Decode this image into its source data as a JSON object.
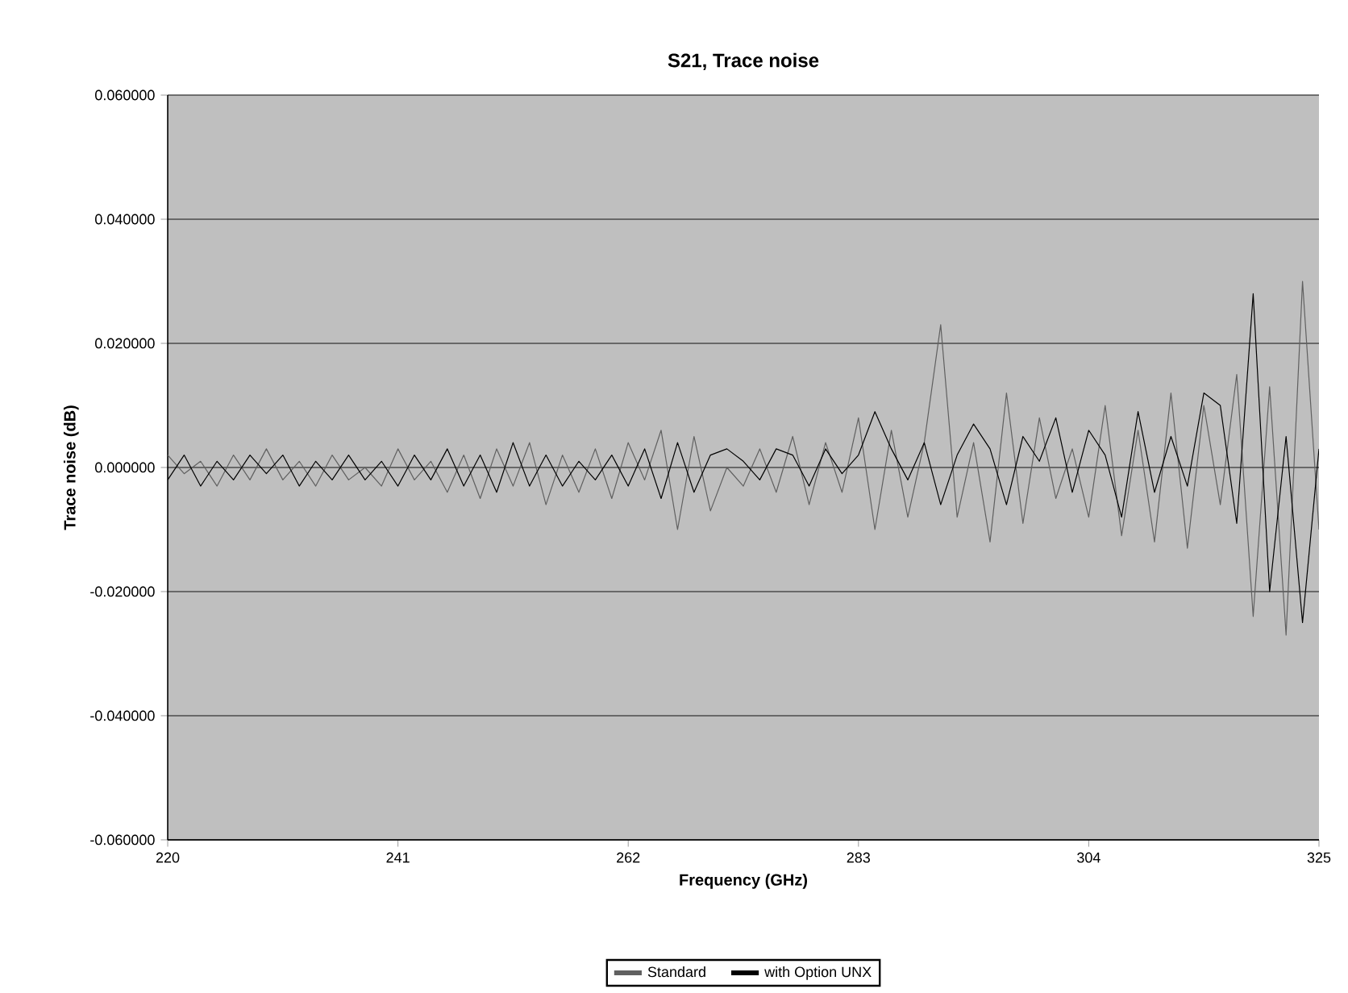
{
  "chart_data": {
    "type": "line",
    "title": "S21, Trace noise",
    "xlabel": "Frequency (GHz)",
    "ylabel": "Trace noise (dB)",
    "xlim": [
      220,
      325
    ],
    "xticks": [
      220,
      241,
      262,
      283,
      304,
      325
    ],
    "ylim": [
      -0.06,
      0.06
    ],
    "yticks": [
      {
        "value": -0.06,
        "label": "-0.060000"
      },
      {
        "value": -0.04,
        "label": "-0.040000"
      },
      {
        "value": -0.02,
        "label": "-0.020000"
      },
      {
        "value": 0,
        "label": "0.000000"
      },
      {
        "value": 0.02,
        "label": "0.020000"
      },
      {
        "value": 0.04,
        "label": "0.040000"
      },
      {
        "value": 0.06,
        "label": "0.060000"
      }
    ],
    "grid": "y",
    "legend": "bottom",
    "marker": "none",
    "line_style": "solid",
    "x": [
      220,
      221.5,
      223,
      224.5,
      226,
      227.5,
      229,
      230.5,
      232,
      233.5,
      235,
      236.5,
      238,
      239.5,
      241,
      242.5,
      244,
      245.5,
      247,
      248.5,
      250,
      251.5,
      253,
      254.5,
      256,
      257.5,
      259,
      260.5,
      262,
      263.5,
      265,
      266.5,
      268,
      269.5,
      271,
      272.5,
      274,
      275.5,
      277,
      278.5,
      280,
      281.5,
      283,
      284.5,
      286,
      287.5,
      289,
      290.5,
      292,
      293.5,
      295,
      296.5,
      298,
      299.5,
      301,
      302.5,
      304,
      305.5,
      307,
      308.5,
      310,
      311.5,
      313,
      314.5,
      316,
      317.5,
      319,
      320.5,
      322,
      323.5,
      325
    ],
    "series": [
      {
        "name": "Standard",
        "color": "#606060",
        "values": [
          0.002,
          -0.001,
          0.001,
          -0.003,
          0.002,
          -0.002,
          0.003,
          -0.002,
          0.001,
          -0.003,
          0.002,
          -0.002,
          0.0,
          -0.003,
          0.003,
          -0.002,
          0.001,
          -0.004,
          0.002,
          -0.005,
          0.003,
          -0.003,
          0.004,
          -0.006,
          0.002,
          -0.004,
          0.003,
          -0.005,
          0.004,
          -0.002,
          0.006,
          -0.01,
          0.005,
          -0.007,
          0.0,
          -0.003,
          0.003,
          -0.004,
          0.005,
          -0.006,
          0.004,
          -0.004,
          0.008,
          -0.01,
          0.006,
          -0.008,
          0.004,
          0.023,
          -0.008,
          0.004,
          -0.012,
          0.012,
          -0.009,
          0.008,
          -0.005,
          0.003,
          -0.008,
          0.01,
          -0.011,
          0.006,
          -0.012,
          0.012,
          -0.013,
          0.01,
          -0.006,
          0.015,
          -0.024,
          0.013,
          -0.027,
          0.03,
          -0.01
        ]
      },
      {
        "name": "with Option UNX",
        "color": "#000000",
        "values": [
          -0.002,
          0.002,
          -0.003,
          0.001,
          -0.002,
          0.002,
          -0.001,
          0.002,
          -0.003,
          0.001,
          -0.002,
          0.002,
          -0.002,
          0.001,
          -0.003,
          0.002,
          -0.002,
          0.003,
          -0.003,
          0.002,
          -0.004,
          0.004,
          -0.003,
          0.002,
          -0.003,
          0.001,
          -0.002,
          0.002,
          -0.003,
          0.003,
          -0.005,
          0.004,
          -0.004,
          0.002,
          0.003,
          0.001,
          -0.002,
          0.003,
          0.002,
          -0.003,
          0.003,
          -0.001,
          0.002,
          0.009,
          0.003,
          -0.002,
          0.004,
          -0.006,
          0.002,
          0.007,
          0.003,
          -0.006,
          0.005,
          0.001,
          0.008,
          -0.004,
          0.006,
          0.002,
          -0.008,
          0.009,
          -0.004,
          0.005,
          -0.003,
          0.012,
          0.01,
          -0.009,
          0.028,
          -0.02,
          0.005,
          -0.025,
          0.003
        ]
      }
    ]
  }
}
